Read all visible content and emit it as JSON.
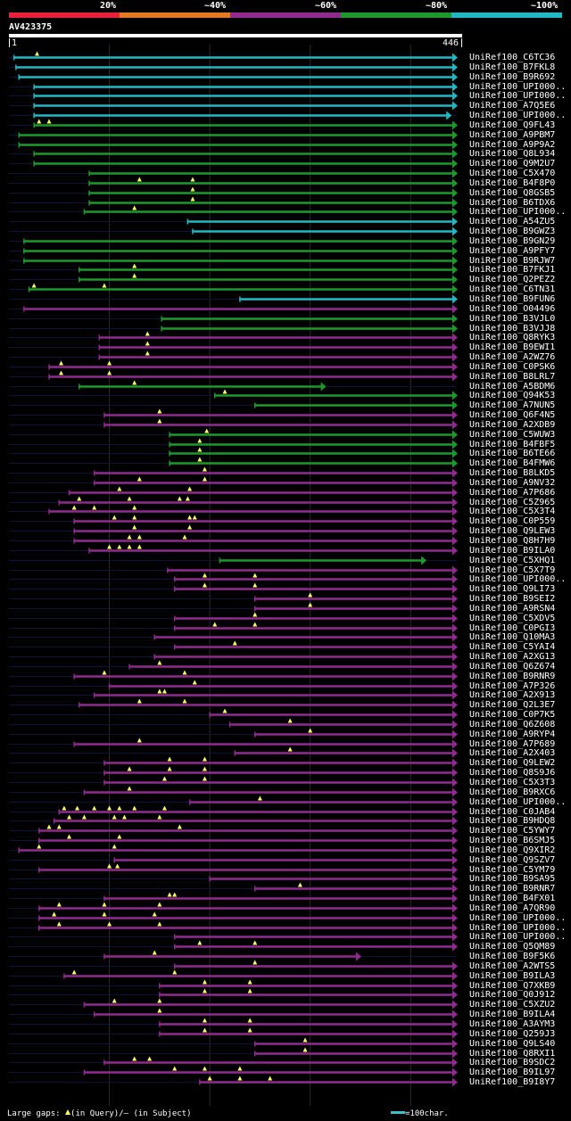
{
  "legend": {
    "labels": [
      "20%",
      "~40%",
      "~60%",
      "~80%",
      "~100%"
    ],
    "colors": [
      "#e8203a",
      "#e27a24",
      "#8f2b8e",
      "#1b9a2b",
      "#21b8c4"
    ]
  },
  "query": {
    "id": "AV423375",
    "start_label": "1",
    "end_label": "446",
    "length": 446
  },
  "footer": {
    "gaps_prefix": "Large gaps: ",
    "gaps_suffix": "(in Query)/– (in Subject)",
    "scale_label": "=100char."
  },
  "chart_data": {
    "type": "alignment-map",
    "query_length": 446,
    "color_by_identity": {
      "100": "#21b8c4",
      "80": "#1b9a2b",
      "60": "#8f2b8e"
    },
    "hits": [
      {
        "name": "UniRef100_C6TC36",
        "start": 5,
        "end": 446,
        "id": 100,
        "gaps": [
          28
        ]
      },
      {
        "name": "UniRef100_B7FKL8",
        "start": 7,
        "end": 446,
        "id": 100,
        "gaps": []
      },
      {
        "name": "UniRef100_B9R692",
        "start": 10,
        "end": 446,
        "id": 100,
        "gaps": []
      },
      {
        "name": "UniRef100_UPI000..",
        "start": 25,
        "end": 446,
        "id": 100,
        "gaps": []
      },
      {
        "name": "UniRef100_UPI000..",
        "start": 25,
        "end": 446,
        "id": 100,
        "gaps": []
      },
      {
        "name": "UniRef100_A7Q5E6",
        "start": 25,
        "end": 446,
        "id": 100,
        "gaps": []
      },
      {
        "name": "UniRef100_UPI000..",
        "start": 25,
        "end": 440,
        "id": 100,
        "gaps": []
      },
      {
        "name": "UniRef100_Q9FL43",
        "start": 25,
        "end": 446,
        "id": 80,
        "gaps": [
          30,
          40
        ]
      },
      {
        "name": "UniRef100_A9PBM7",
        "start": 10,
        "end": 446,
        "id": 80,
        "gaps": []
      },
      {
        "name": "UniRef100_A9P9A2",
        "start": 10,
        "end": 446,
        "id": 80,
        "gaps": []
      },
      {
        "name": "UniRef100_Q8L934",
        "start": 25,
        "end": 446,
        "id": 80,
        "gaps": []
      },
      {
        "name": "UniRef100_Q9M2U7",
        "start": 25,
        "end": 446,
        "id": 80,
        "gaps": []
      },
      {
        "name": "UniRef100_C5X470",
        "start": 80,
        "end": 446,
        "id": 80,
        "gaps": []
      },
      {
        "name": "UniRef100_B4F8P0",
        "start": 80,
        "end": 446,
        "id": 80,
        "gaps": [
          130,
          183
        ]
      },
      {
        "name": "UniRef100_Q8GSB5",
        "start": 80,
        "end": 446,
        "id": 80,
        "gaps": [
          183
        ]
      },
      {
        "name": "UniRef100_B6TDX6",
        "start": 80,
        "end": 446,
        "id": 80,
        "gaps": [
          183
        ]
      },
      {
        "name": "UniRef100_UPI000..",
        "start": 75,
        "end": 446,
        "id": 80,
        "gaps": [
          125
        ]
      },
      {
        "name": "UniRef100_A54ZU5",
        "start": 178,
        "end": 446,
        "id": 100,
        "gaps": []
      },
      {
        "name": "UniRef100_B9GWZ3",
        "start": 183,
        "end": 446,
        "id": 100,
        "gaps": []
      },
      {
        "name": "UniRef100_B9GN29",
        "start": 15,
        "end": 446,
        "id": 80,
        "gaps": []
      },
      {
        "name": "UniRef100_A9PFY7",
        "start": 15,
        "end": 446,
        "id": 80,
        "gaps": []
      },
      {
        "name": "UniRef100_B9RJW7",
        "start": 15,
        "end": 446,
        "id": 80,
        "gaps": []
      },
      {
        "name": "UniRef100_B7FKJ1",
        "start": 70,
        "end": 446,
        "id": 80,
        "gaps": [
          125
        ]
      },
      {
        "name": "UniRef100_Q2PEZ2",
        "start": 70,
        "end": 446,
        "id": 80,
        "gaps": [
          125
        ]
      },
      {
        "name": "UniRef100_C6TN31",
        "start": 20,
        "end": 446,
        "id": 80,
        "gaps": [
          25,
          95
        ]
      },
      {
        "name": "UniRef100_B9FUN6",
        "start": 230,
        "end": 446,
        "id": 100,
        "gaps": []
      },
      {
        "name": "UniRef100_O04496",
        "start": 15,
        "end": 446,
        "id": 60,
        "gaps": []
      },
      {
        "name": "UniRef100_B3VJL0",
        "start": 152,
        "end": 446,
        "id": 80,
        "gaps": []
      },
      {
        "name": "UniRef100_B3VJJ8",
        "start": 152,
        "end": 446,
        "id": 80,
        "gaps": []
      },
      {
        "name": "UniRef100_Q8RYK3",
        "start": 90,
        "end": 446,
        "id": 60,
        "gaps": [
          138
        ]
      },
      {
        "name": "UniRef100_B9EWI1",
        "start": 90,
        "end": 446,
        "id": 60,
        "gaps": [
          138
        ]
      },
      {
        "name": "UniRef100_A2WZ76",
        "start": 90,
        "end": 446,
        "id": 60,
        "gaps": [
          138
        ]
      },
      {
        "name": "UniRef100_C0PSK6",
        "start": 40,
        "end": 446,
        "id": 60,
        "gaps": [
          52,
          100
        ]
      },
      {
        "name": "UniRef100_B8LRL7",
        "start": 40,
        "end": 446,
        "id": 60,
        "gaps": [
          52,
          100
        ]
      },
      {
        "name": "UniRef100_A5BDM6",
        "start": 70,
        "end": 315,
        "id": 80,
        "gaps": [
          125
        ]
      },
      {
        "name": "UniRef100_Q94K53",
        "start": 205,
        "end": 446,
        "id": 80,
        "gaps": [
          215
        ]
      },
      {
        "name": "UniRef100_A7NUN5",
        "start": 245,
        "end": 446,
        "id": 80,
        "gaps": []
      },
      {
        "name": "UniRef100_Q6F4N5",
        "start": 95,
        "end": 446,
        "id": 60,
        "gaps": [
          150
        ]
      },
      {
        "name": "UniRef100_A2XDB9",
        "start": 95,
        "end": 446,
        "id": 60,
        "gaps": [
          150
        ]
      },
      {
        "name": "UniRef100_C5WUW3",
        "start": 160,
        "end": 446,
        "id": 80,
        "gaps": [
          197
        ]
      },
      {
        "name": "UniRef100_B4FBF5",
        "start": 160,
        "end": 446,
        "id": 80,
        "gaps": [
          190
        ]
      },
      {
        "name": "UniRef100_B6TE66",
        "start": 160,
        "end": 446,
        "id": 80,
        "gaps": [
          190
        ]
      },
      {
        "name": "UniRef100_B4FMW6",
        "start": 160,
        "end": 446,
        "id": 80,
        "gaps": [
          190
        ]
      },
      {
        "name": "UniRef100_B8LKD5",
        "start": 85,
        "end": 446,
        "id": 60,
        "gaps": [
          195
        ]
      },
      {
        "name": "UniRef100_A9NV32",
        "start": 85,
        "end": 446,
        "id": 60,
        "gaps": [
          130,
          195
        ]
      },
      {
        "name": "UniRef100_A7P686",
        "start": 60,
        "end": 446,
        "id": 60,
        "gaps": [
          110,
          180
        ]
      },
      {
        "name": "UniRef100_C5Z965",
        "start": 50,
        "end": 446,
        "id": 60,
        "gaps": [
          70,
          120,
          170,
          178
        ]
      },
      {
        "name": "UniRef100_C5X3T4",
        "start": 40,
        "end": 446,
        "id": 60,
        "gaps": [
          65,
          85,
          125
        ]
      },
      {
        "name": "UniRef100_C0P559",
        "start": 65,
        "end": 446,
        "id": 60,
        "gaps": [
          105,
          125,
          180,
          185
        ]
      },
      {
        "name": "UniRef100_Q9LEW3",
        "start": 65,
        "end": 446,
        "id": 60,
        "gaps": [
          125,
          180
        ]
      },
      {
        "name": "UniRef100_Q8H7H9",
        "start": 65,
        "end": 446,
        "id": 60,
        "gaps": [
          120,
          130,
          175
        ]
      },
      {
        "name": "UniRef100_B9ILA0",
        "start": 80,
        "end": 446,
        "id": 60,
        "gaps": [
          100,
          110,
          120,
          130
        ]
      },
      {
        "name": "UniRef100_C5XHQ1",
        "start": 210,
        "end": 415,
        "id": 80,
        "gaps": []
      },
      {
        "name": "UniRef100_C5X7T9",
        "start": 158,
        "end": 446,
        "id": 60,
        "gaps": []
      },
      {
        "name": "UniRef100_UPI000..",
        "start": 165,
        "end": 446,
        "id": 60,
        "gaps": [
          195,
          245
        ]
      },
      {
        "name": "UniRef100_Q9LI73",
        "start": 165,
        "end": 446,
        "id": 60,
        "gaps": [
          195,
          245
        ]
      },
      {
        "name": "UniRef100_B9SEI2",
        "start": 245,
        "end": 446,
        "id": 60,
        "gaps": [
          300
        ]
      },
      {
        "name": "UniRef100_A9RSN4",
        "start": 245,
        "end": 446,
        "id": 60,
        "gaps": [
          300
        ]
      },
      {
        "name": "UniRef100_C5XDV5",
        "start": 165,
        "end": 446,
        "id": 60,
        "gaps": [
          245
        ]
      },
      {
        "name": "UniRef100_C0PGI3",
        "start": 165,
        "end": 446,
        "id": 60,
        "gaps": [
          205,
          245
        ]
      },
      {
        "name": "UniRef100_Q10MA3",
        "start": 145,
        "end": 446,
        "id": 60,
        "gaps": []
      },
      {
        "name": "UniRef100_C5YAI4",
        "start": 165,
        "end": 446,
        "id": 60,
        "gaps": [
          225
        ]
      },
      {
        "name": "UniRef100_A2XG13",
        "start": 145,
        "end": 446,
        "id": 60,
        "gaps": []
      },
      {
        "name": "UniRef100_Q6Z674",
        "start": 120,
        "end": 446,
        "id": 60,
        "gaps": [
          150
        ]
      },
      {
        "name": "UniRef100_B9RNR9",
        "start": 65,
        "end": 446,
        "id": 60,
        "gaps": [
          95,
          175
        ]
      },
      {
        "name": "UniRef100_A7P326",
        "start": 100,
        "end": 446,
        "id": 60,
        "gaps": [
          185
        ]
      },
      {
        "name": "UniRef100_A2X913",
        "start": 85,
        "end": 446,
        "id": 60,
        "gaps": [
          150,
          155
        ]
      },
      {
        "name": "UniRef100_Q2L3E7",
        "start": 70,
        "end": 446,
        "id": 60,
        "gaps": [
          130,
          175
        ]
      },
      {
        "name": "UniRef100_C0P7K5",
        "start": 200,
        "end": 446,
        "id": 60,
        "gaps": [
          215
        ]
      },
      {
        "name": "UniRef100_Q6Z608",
        "start": 220,
        "end": 446,
        "id": 60,
        "gaps": [
          280
        ]
      },
      {
        "name": "UniRef100_A9RYP4",
        "start": 245,
        "end": 446,
        "id": 60,
        "gaps": [
          300
        ]
      },
      {
        "name": "UniRef100_A7P689",
        "start": 65,
        "end": 446,
        "id": 60,
        "gaps": [
          130
        ]
      },
      {
        "name": "UniRef100_A2X403",
        "start": 225,
        "end": 446,
        "id": 60,
        "gaps": [
          280
        ]
      },
      {
        "name": "UniRef100_Q9LEW2",
        "start": 95,
        "end": 446,
        "id": 60,
        "gaps": [
          160,
          195
        ]
      },
      {
        "name": "UniRef100_Q8S9J6",
        "start": 95,
        "end": 446,
        "id": 60,
        "gaps": [
          120,
          160,
          195
        ]
      },
      {
        "name": "UniRef100_C5X3T3",
        "start": 95,
        "end": 446,
        "id": 60,
        "gaps": [
          155,
          195
        ]
      },
      {
        "name": "UniRef100_B9RXC6",
        "start": 75,
        "end": 446,
        "id": 60,
        "gaps": [
          120
        ]
      },
      {
        "name": "UniRef100_UPI000..",
        "start": 180,
        "end": 446,
        "id": 60,
        "gaps": [
          250
        ]
      },
      {
        "name": "UniRef100_C0JAB4",
        "start": 50,
        "end": 446,
        "id": 60,
        "gaps": [
          55,
          68,
          85,
          100,
          110,
          125,
          155
        ]
      },
      {
        "name": "UniRef100_B9HDQ8",
        "start": 45,
        "end": 446,
        "id": 60,
        "gaps": [
          60,
          75,
          105,
          115,
          150
        ]
      },
      {
        "name": "UniRef100_C5YWY7",
        "start": 30,
        "end": 446,
        "id": 60,
        "gaps": [
          40,
          50,
          170
        ]
      },
      {
        "name": "UniRef100_B6SMJ5",
        "start": 30,
        "end": 446,
        "id": 60,
        "gaps": [
          60,
          110
        ]
      },
      {
        "name": "UniRef100_Q9XIR2",
        "start": 10,
        "end": 446,
        "id": 60,
        "gaps": [
          30,
          105
        ]
      },
      {
        "name": "UniRef100_Q9SZV7",
        "start": 105,
        "end": 446,
        "id": 60,
        "gaps": []
      },
      {
        "name": "UniRef100_C5YM79",
        "start": 30,
        "end": 446,
        "id": 60,
        "gaps": [
          100,
          108
        ]
      },
      {
        "name": "UniRef100_B9SA95",
        "start": 200,
        "end": 446,
        "id": 60,
        "gaps": []
      },
      {
        "name": "UniRef100_B9RNR7",
        "start": 245,
        "end": 446,
        "id": 60,
        "gaps": [
          290
        ]
      },
      {
        "name": "UniRef100_B4FX01",
        "start": 95,
        "end": 446,
        "id": 60,
        "gaps": [
          160,
          165
        ]
      },
      {
        "name": "UniRef100_A7QR90",
        "start": 30,
        "end": 446,
        "id": 60,
        "gaps": [
          50,
          95,
          150
        ]
      },
      {
        "name": "UniRef100_UPI000..",
        "start": 30,
        "end": 446,
        "id": 60,
        "gaps": [
          45,
          95,
          145
        ]
      },
      {
        "name": "UniRef100_UPI000..",
        "start": 30,
        "end": 446,
        "id": 60,
        "gaps": [
          50,
          100,
          150
        ]
      },
      {
        "name": "UniRef100_UPI000..",
        "start": 165,
        "end": 446,
        "id": 60,
        "gaps": []
      },
      {
        "name": "UniRef100_Q5QM89",
        "start": 165,
        "end": 446,
        "id": 60,
        "gaps": [
          190,
          245
        ]
      },
      {
        "name": "UniRef100_B9F5K6",
        "start": 95,
        "end": 350,
        "id": 60,
        "gaps": [
          145
        ]
      },
      {
        "name": "UniRef100_A2WTS5",
        "start": 165,
        "end": 446,
        "id": 60,
        "gaps": [
          245
        ]
      },
      {
        "name": "UniRef100_B9ILA3",
        "start": 55,
        "end": 446,
        "id": 60,
        "gaps": [
          65,
          165
        ]
      },
      {
        "name": "UniRef100_Q7XKB9",
        "start": 150,
        "end": 446,
        "id": 60,
        "gaps": [
          195,
          240
        ]
      },
      {
        "name": "UniRef100_Q0J912",
        "start": 150,
        "end": 446,
        "id": 60,
        "gaps": [
          195,
          240
        ]
      },
      {
        "name": "UniRef100_C5XZU2",
        "start": 75,
        "end": 446,
        "id": 60,
        "gaps": [
          105,
          150
        ]
      },
      {
        "name": "UniRef100_B9ILA4",
        "start": 85,
        "end": 446,
        "id": 60,
        "gaps": [
          150
        ]
      },
      {
        "name": "UniRef100_A3AYM3",
        "start": 150,
        "end": 446,
        "id": 60,
        "gaps": [
          195,
          240
        ]
      },
      {
        "name": "UniRef100_Q259J3",
        "start": 150,
        "end": 446,
        "id": 60,
        "gaps": [
          195,
          240
        ]
      },
      {
        "name": "UniRef100_Q9LS40",
        "start": 245,
        "end": 446,
        "id": 60,
        "gaps": [
          295
        ]
      },
      {
        "name": "UniRef100_Q8RXI1",
        "start": 245,
        "end": 446,
        "id": 60,
        "gaps": [
          295
        ]
      },
      {
        "name": "UniRef100_B9SDC2",
        "start": 95,
        "end": 446,
        "id": 60,
        "gaps": [
          125,
          140
        ]
      },
      {
        "name": "UniRef100_B9IL97",
        "start": 75,
        "end": 446,
        "id": 60,
        "gaps": [
          165,
          195,
          230
        ]
      },
      {
        "name": "UniRef100_B9I8Y7",
        "start": 190,
        "end": 446,
        "id": 60,
        "gaps": [
          200,
          230,
          260
        ]
      }
    ]
  }
}
